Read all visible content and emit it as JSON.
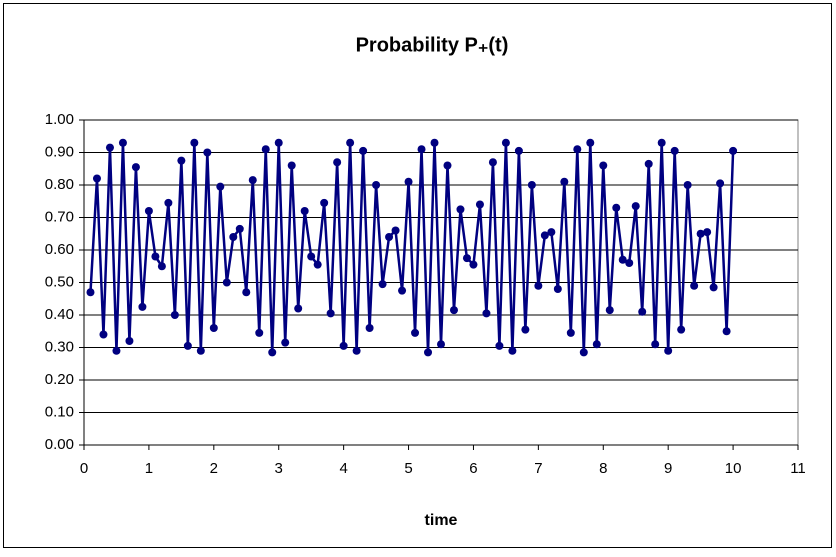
{
  "chart_data": {
    "type": "line",
    "title": "Probability P₊(t)",
    "x_label": "time",
    "x": [
      0.1,
      0.2,
      0.3,
      0.4,
      0.5,
      0.6,
      0.7,
      0.8,
      0.9,
      1.0,
      1.1,
      1.2,
      1.3,
      1.4,
      1.5,
      1.6,
      1.7,
      1.8,
      1.9,
      2.0,
      2.1,
      2.2,
      2.3,
      2.4,
      2.5,
      2.6,
      2.7,
      2.8,
      2.9,
      3.0,
      3.1,
      3.2,
      3.3,
      3.4,
      3.5,
      3.6,
      3.7,
      3.8,
      3.9,
      4.0,
      4.1,
      4.2,
      4.3,
      4.4,
      4.5,
      4.6,
      4.7,
      4.8,
      4.9,
      5.0,
      5.1,
      5.2,
      5.3,
      5.4,
      5.5,
      5.6,
      5.7,
      5.8,
      5.9,
      6.0,
      6.1,
      6.2,
      6.3,
      6.4,
      6.5,
      6.6,
      6.7,
      6.8,
      6.9,
      7.0,
      7.1,
      7.2,
      7.3,
      7.4,
      7.5,
      7.6,
      7.7,
      7.8,
      7.9,
      8.0,
      8.1,
      8.2,
      8.3,
      8.4,
      8.5,
      8.6,
      8.7,
      8.8,
      8.9,
      9.0,
      9.1,
      9.2,
      9.3,
      9.4,
      9.5,
      9.6,
      9.7,
      9.8,
      9.9,
      10.0
    ],
    "series": [
      {
        "color": "#000080",
        "values": [
          0.47,
          0.82,
          0.34,
          0.915,
          0.29,
          0.93,
          0.32,
          0.855,
          0.425,
          0.72,
          0.58,
          0.55,
          0.745,
          0.4,
          0.875,
          0.305,
          0.93,
          0.29,
          0.9,
          0.36,
          0.795,
          0.5,
          0.64,
          0.665,
          0.47,
          0.815,
          0.345,
          0.91,
          0.285,
          0.93,
          0.315,
          0.86,
          0.42,
          0.72,
          0.58,
          0.555,
          0.745,
          0.405,
          0.87,
          0.305,
          0.93,
          0.29,
          0.905,
          0.36,
          0.8,
          0.495,
          0.64,
          0.66,
          0.475,
          0.81,
          0.345,
          0.91,
          0.285,
          0.93,
          0.31,
          0.86,
          0.415,
          0.725,
          0.575,
          0.555,
          0.74,
          0.405,
          0.87,
          0.305,
          0.93,
          0.29,
          0.905,
          0.355,
          0.8,
          0.49,
          0.645,
          0.655,
          0.48,
          0.81,
          0.345,
          0.91,
          0.285,
          0.93,
          0.31,
          0.86,
          0.415,
          0.73,
          0.57,
          0.56,
          0.735,
          0.41,
          0.865,
          0.31,
          0.93,
          0.29,
          0.905,
          0.355,
          0.8,
          0.49,
          0.65,
          0.655,
          0.485,
          0.805,
          0.35,
          0.905
        ]
      }
    ],
    "xlim": [
      0,
      11
    ],
    "xticks": [
      0,
      1,
      2,
      3,
      4,
      5,
      6,
      7,
      8,
      9,
      10,
      11
    ],
    "ylim": [
      0,
      1
    ],
    "yticks": [
      {
        "value": 0,
        "label": "0.00"
      },
      {
        "value": 0.1,
        "label": "0.10"
      },
      {
        "value": 0.2,
        "label": "0.20"
      },
      {
        "value": 0.3,
        "label": "0.30"
      },
      {
        "value": 0.4,
        "label": "0.40"
      },
      {
        "value": 0.5,
        "label": "0.50"
      },
      {
        "value": 0.6,
        "label": "0.60"
      },
      {
        "value": 0.7,
        "label": "0.70"
      },
      {
        "value": 0.8,
        "label": "0.80"
      },
      {
        "value": 0.9,
        "label": "0.90"
      },
      {
        "value": 1,
        "label": "1.00"
      }
    ],
    "grid": true
  }
}
